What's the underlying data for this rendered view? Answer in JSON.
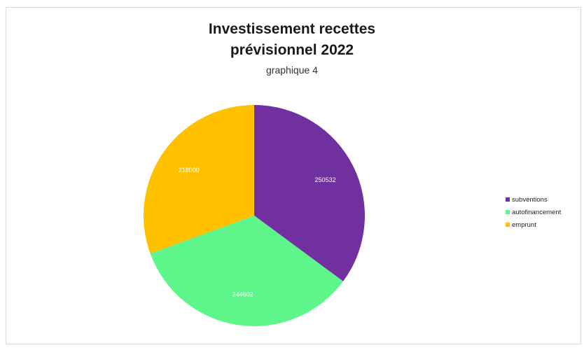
{
  "chart_data": {
    "type": "pie",
    "title_line1": "Investissement recettes",
    "title_line2": "prévisionnel 2022",
    "subtitle": "graphique 4",
    "categories": [
      "subventions",
      "autofinancement",
      "emprunt"
    ],
    "values": [
      250532,
      244602,
      218000
    ],
    "value_labels": [
      "250532",
      "244602",
      "218000"
    ],
    "colors": [
      "#7030a0",
      "#5ef58b",
      "#ffc000"
    ],
    "label_color": "#ffffff",
    "legend_position": "right"
  }
}
